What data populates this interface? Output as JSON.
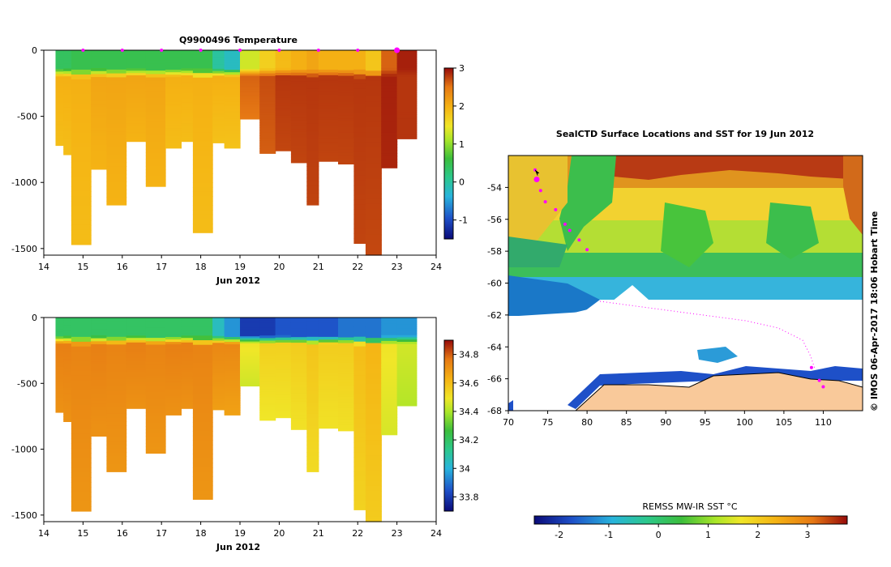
{
  "temperature_panel": {
    "title": "Q9900496  Temperature",
    "xlabel": "Jun 2012",
    "x_ticks": [
      "14",
      "15",
      "16",
      "17",
      "18",
      "19",
      "20",
      "21",
      "22",
      "23",
      "24"
    ],
    "y_ticks": [
      "0",
      "-500",
      "-1000",
      "-1500"
    ],
    "colorbar_ticks": [
      "3",
      "2",
      "1",
      "0",
      "-1"
    ]
  },
  "salinity_panel": {
    "xlabel": "Jun 2012",
    "x_ticks": [
      "14",
      "15",
      "16",
      "17",
      "18",
      "19",
      "20",
      "21",
      "22",
      "23",
      "24"
    ],
    "y_ticks": [
      "0",
      "-500",
      "-1000",
      "-1500"
    ],
    "colorbar_ticks": [
      "34.8",
      "34.6",
      "34.4",
      "34.2",
      "34",
      "33.8"
    ]
  },
  "map_panel": {
    "title": "SealCTD Surface Locations and SST for 19 Jun 2012",
    "lon_ticks": [
      "70",
      "75",
      "80",
      "85",
      "90",
      "95",
      "100",
      "105",
      "110"
    ],
    "lat_ticks": [
      "-54",
      "-56",
      "-58",
      "-60",
      "-62",
      "-64",
      "-66",
      "-68"
    ],
    "side_label": "© IMOS 06-Apr-2017 18:06 Hobart Time",
    "colorbar_title": "REMSS MW-IR SST °C",
    "colorbar_ticks": [
      "-2",
      "-1",
      "0",
      "1",
      "2",
      "3"
    ]
  },
  "colors": {
    "marker": "#ff00ff",
    "land": "#f9c99a",
    "ice_white": "#ffffff"
  },
  "chart_data": [
    {
      "type": "heatmap",
      "title": "Q9900496  Temperature",
      "xlabel": "Jun 2012",
      "ylabel": "",
      "xlim": [
        14,
        24
      ],
      "ylim": [
        -1550,
        0
      ],
      "colorbar_range": [
        -1.5,
        3
      ],
      "profiles": [
        {
          "day": 14.3,
          "max_depth": 720,
          "surface_temp": 0.4,
          "deep_temp": 2.0
        },
        {
          "day": 14.5,
          "max_depth": 790,
          "surface_temp": 0.4,
          "deep_temp": 2.0
        },
        {
          "day": 14.7,
          "max_depth": 1470,
          "surface_temp": 0.5,
          "deep_temp": 2.0
        },
        {
          "day": 15.2,
          "max_depth": 900,
          "surface_temp": 0.5,
          "deep_temp": 2.1
        },
        {
          "day": 15.6,
          "max_depth": 1170,
          "surface_temp": 0.5,
          "deep_temp": 2.1
        },
        {
          "day": 16.1,
          "max_depth": 690,
          "surface_temp": 0.5,
          "deep_temp": 2.1
        },
        {
          "day": 16.6,
          "max_depth": 1030,
          "surface_temp": 0.5,
          "deep_temp": 2.1
        },
        {
          "day": 17.1,
          "max_depth": 740,
          "surface_temp": 0.5,
          "deep_temp": 2.0
        },
        {
          "day": 17.5,
          "max_depth": 690,
          "surface_temp": 0.5,
          "deep_temp": 2.0
        },
        {
          "day": 17.8,
          "max_depth": 1380,
          "surface_temp": 0.5,
          "deep_temp": 2.0
        },
        {
          "day": 18.3,
          "max_depth": 700,
          "surface_temp": 0.0,
          "deep_temp": 2.0
        },
        {
          "day": 18.6,
          "max_depth": 740,
          "surface_temp": -0.2,
          "deep_temp": 2.0
        },
        {
          "day": 19.0,
          "max_depth": 520,
          "surface_temp": 1.3,
          "deep_temp": 2.6
        },
        {
          "day": 19.5,
          "max_depth": 780,
          "surface_temp": 1.7,
          "deep_temp": 2.7
        },
        {
          "day": 19.9,
          "max_depth": 760,
          "surface_temp": 1.9,
          "deep_temp": 2.8
        },
        {
          "day": 20.3,
          "max_depth": 850,
          "surface_temp": 2.0,
          "deep_temp": 2.8
        },
        {
          "day": 20.7,
          "max_depth": 1170,
          "surface_temp": 2.1,
          "deep_temp": 2.8
        },
        {
          "day": 21.0,
          "max_depth": 840,
          "surface_temp": 2.0,
          "deep_temp": 2.8
        },
        {
          "day": 21.5,
          "max_depth": 860,
          "surface_temp": 2.0,
          "deep_temp": 2.8
        },
        {
          "day": 21.9,
          "max_depth": 1460,
          "surface_temp": 2.0,
          "deep_temp": 2.8
        },
        {
          "day": 22.2,
          "max_depth": 1550,
          "surface_temp": 1.8,
          "deep_temp": 2.8
        },
        {
          "day": 22.6,
          "max_depth": 890,
          "surface_temp": 2.6,
          "deep_temp": 2.9
        },
        {
          "day": 23.0,
          "max_depth": 670,
          "surface_temp": 2.9,
          "deep_temp": 2.8
        }
      ],
      "surface_markers_day": [
        15,
        16,
        17,
        18,
        19,
        20,
        21,
        22,
        23
      ]
    },
    {
      "type": "heatmap",
      "title": "",
      "xlabel": "Jun 2012",
      "ylabel": "",
      "xlim": [
        14,
        24
      ],
      "ylim": [
        -1550,
        0
      ],
      "colorbar_range": [
        33.7,
        34.9
      ],
      "profiles": [
        {
          "day": 14.3,
          "max_depth": 720,
          "surface_sal": 34.2,
          "deep_sal": 34.75
        },
        {
          "day": 14.5,
          "max_depth": 790,
          "surface_sal": 34.2,
          "deep_sal": 34.75
        },
        {
          "day": 14.7,
          "max_depth": 1470,
          "surface_sal": 34.2,
          "deep_sal": 34.74
        },
        {
          "day": 15.2,
          "max_depth": 900,
          "surface_sal": 34.2,
          "deep_sal": 34.75
        },
        {
          "day": 15.6,
          "max_depth": 1170,
          "surface_sal": 34.2,
          "deep_sal": 34.74
        },
        {
          "day": 16.1,
          "max_depth": 690,
          "surface_sal": 34.2,
          "deep_sal": 34.75
        },
        {
          "day": 16.6,
          "max_depth": 1030,
          "surface_sal": 34.2,
          "deep_sal": 34.74
        },
        {
          "day": 17.1,
          "max_depth": 740,
          "surface_sal": 34.2,
          "deep_sal": 34.75
        },
        {
          "day": 17.5,
          "max_depth": 690,
          "surface_sal": 34.2,
          "deep_sal": 34.75
        },
        {
          "day": 17.8,
          "max_depth": 1380,
          "surface_sal": 34.2,
          "deep_sal": 34.74
        },
        {
          "day": 18.3,
          "max_depth": 700,
          "surface_sal": 34.05,
          "deep_sal": 34.73
        },
        {
          "day": 18.6,
          "max_depth": 740,
          "surface_sal": 33.95,
          "deep_sal": 34.73
        },
        {
          "day": 19.0,
          "max_depth": 520,
          "surface_sal": 33.8,
          "deep_sal": 34.5
        },
        {
          "day": 19.5,
          "max_depth": 780,
          "surface_sal": 33.8,
          "deep_sal": 34.55
        },
        {
          "day": 19.9,
          "max_depth": 760,
          "surface_sal": 33.85,
          "deep_sal": 34.55
        },
        {
          "day": 20.3,
          "max_depth": 850,
          "surface_sal": 33.85,
          "deep_sal": 34.56
        },
        {
          "day": 20.7,
          "max_depth": 1170,
          "surface_sal": 33.85,
          "deep_sal": 34.58
        },
        {
          "day": 21.0,
          "max_depth": 840,
          "surface_sal": 33.85,
          "deep_sal": 34.56
        },
        {
          "day": 21.5,
          "max_depth": 860,
          "surface_sal": 33.9,
          "deep_sal": 34.56
        },
        {
          "day": 21.9,
          "max_depth": 1460,
          "surface_sal": 33.9,
          "deep_sal": 34.6
        },
        {
          "day": 22.2,
          "max_depth": 1550,
          "surface_sal": 33.9,
          "deep_sal": 34.62
        },
        {
          "day": 22.6,
          "max_depth": 890,
          "surface_sal": 33.95,
          "deep_sal": 34.5
        },
        {
          "day": 23.0,
          "max_depth": 670,
          "surface_sal": 33.95,
          "deep_sal": 34.45
        }
      ]
    },
    {
      "type": "heatmap",
      "title": "SealCTD Surface Locations and SST for 19 Jun 2012",
      "xlabel": "",
      "ylabel": "",
      "xlim": [
        70,
        115
      ],
      "ylim": [
        -68,
        -52
      ],
      "colorbar_title": "REMSS MW-IR SST °C",
      "colorbar_range": [
        -2.5,
        3.8
      ],
      "track": [
        {
          "lon": 73.4,
          "lat": -52.9
        },
        {
          "lon": 73.6,
          "lat": -53.5
        },
        {
          "lon": 74.1,
          "lat": -54.2
        },
        {
          "lon": 74.7,
          "lat": -54.9
        },
        {
          "lon": 76.0,
          "lat": -55.4
        },
        {
          "lon": 77.2,
          "lat": -56.3
        },
        {
          "lon": 77.8,
          "lat": -56.7
        },
        {
          "lon": 79.0,
          "lat": -57.3
        },
        {
          "lon": 80.0,
          "lat": -57.9
        },
        {
          "lon": 108.5,
          "lat": -65.3
        },
        {
          "lon": 109.5,
          "lat": -66.1
        },
        {
          "lon": 110.0,
          "lat": -66.5
        }
      ],
      "current_position": {
        "lon": 73.6,
        "lat": -53.5
      }
    }
  ]
}
